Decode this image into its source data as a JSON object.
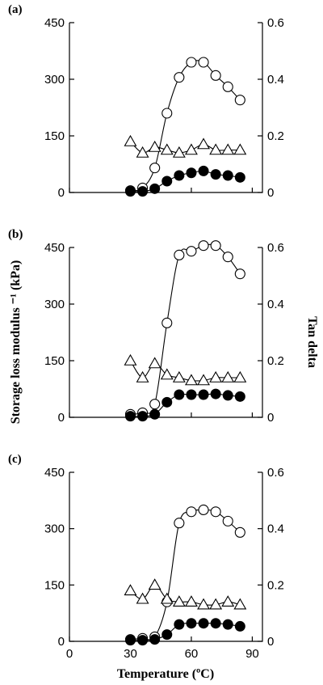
{
  "figure": {
    "ylabel_left": "Storage loss modulus ⁻¹ (kPa)",
    "ylabel_right": "Tan delta",
    "xlabel": "Temperature (ºC)"
  },
  "chart_data": [
    {
      "type": "line",
      "panel": "(a)",
      "x": [
        30,
        36,
        42,
        48,
        54,
        60,
        66,
        72,
        78,
        84,
        90
      ],
      "xlim": [
        0,
        95
      ],
      "xticks": [],
      "ylim_left": [
        0,
        450
      ],
      "yticks_left": [
        "0",
        "150",
        "300",
        "450"
      ],
      "ylim_right": [
        0,
        0.6
      ],
      "yticks_right": [
        "0",
        "0.2",
        "0.4",
        "0.6"
      ],
      "series": [
        {
          "marker": "open-circle",
          "axis": "left",
          "values": [
            5,
            12,
            65,
            210,
            305,
            345,
            345,
            310,
            280,
            245,
            null
          ],
          "line_x": [
            30,
            36,
            42,
            48,
            54,
            60,
            66,
            72,
            78,
            84
          ]
        },
        {
          "marker": "filled-circle",
          "axis": "left",
          "values": [
            3,
            3,
            10,
            30,
            45,
            52,
            57,
            48,
            45,
            40,
            null
          ],
          "line_x": [
            30,
            36,
            42,
            48,
            54,
            60,
            66,
            72,
            78,
            84
          ]
        },
        {
          "marker": "open-triangle",
          "axis": "right",
          "values": [
            0.18,
            0.14,
            0.16,
            0.15,
            0.14,
            0.15,
            0.17,
            0.15,
            0.15,
            0.15,
            null
          ],
          "line_x": [
            30,
            36,
            42,
            48,
            54,
            60,
            66,
            72,
            78,
            84
          ]
        }
      ]
    },
    {
      "type": "line",
      "panel": "(b)",
      "x": [
        30,
        36,
        42,
        48,
        54,
        60,
        66,
        72,
        78,
        84,
        90
      ],
      "xlim": [
        0,
        95
      ],
      "xticks": [],
      "ylim_left": [
        0,
        450
      ],
      "yticks_left": [
        "0",
        "150",
        "300",
        "450"
      ],
      "ylim_right": [
        0,
        0.6
      ],
      "yticks_right": [
        "0",
        "0.2",
        "0.4",
        "0.6"
      ],
      "series": [
        {
          "marker": "open-circle",
          "axis": "left",
          "values": [
            8,
            12,
            35,
            250,
            430,
            440,
            455,
            455,
            425,
            380,
            null
          ],
          "line_x": [
            30,
            36,
            42,
            48,
            54,
            60,
            66,
            72,
            78,
            84
          ]
        },
        {
          "marker": "filled-circle",
          "axis": "left",
          "values": [
            3,
            3,
            8,
            40,
            60,
            60,
            60,
            62,
            58,
            55,
            null
          ],
          "line_x": [
            30,
            36,
            42,
            48,
            54,
            60,
            66,
            72,
            78,
            84
          ]
        },
        {
          "marker": "open-triangle",
          "axis": "right",
          "values": [
            0.2,
            0.14,
            0.19,
            0.15,
            0.14,
            0.13,
            0.13,
            0.14,
            0.14,
            0.14,
            null
          ],
          "line_x": [
            30,
            36,
            42,
            48,
            54,
            60,
            66,
            72,
            78,
            84
          ]
        }
      ]
    },
    {
      "type": "line",
      "panel": "(c)",
      "x": [
        30,
        36,
        42,
        48,
        54,
        60,
        66,
        72,
        78,
        84,
        90
      ],
      "xlim": [
        0,
        95
      ],
      "xticks": [
        "0",
        "30",
        "60",
        "90"
      ],
      "ylim_left": [
        0,
        450
      ],
      "yticks_left": [
        "0",
        "150",
        "300",
        "450"
      ],
      "ylim_right": [
        0,
        0.6
      ],
      "yticks_right": [
        "0",
        "0.2",
        "0.4",
        "0.6"
      ],
      "series": [
        {
          "marker": "open-circle",
          "axis": "left",
          "values": [
            5,
            8,
            12,
            105,
            315,
            345,
            350,
            345,
            320,
            290,
            null
          ],
          "line_x": [
            30,
            36,
            42,
            48,
            54,
            60,
            66,
            72,
            78,
            84
          ]
        },
        {
          "marker": "filled-circle",
          "axis": "left",
          "values": [
            3,
            3,
            5,
            18,
            45,
            48,
            48,
            48,
            45,
            40,
            null
          ],
          "line_x": [
            30,
            36,
            42,
            48,
            54,
            60,
            66,
            72,
            78,
            84
          ]
        },
        {
          "marker": "open-triangle",
          "axis": "right",
          "values": [
            0.18,
            0.15,
            0.2,
            0.15,
            0.14,
            0.14,
            0.13,
            0.13,
            0.14,
            0.13,
            null
          ],
          "line_x": [
            30,
            36,
            42,
            48,
            54,
            60,
            66,
            72,
            78,
            84
          ]
        }
      ]
    }
  ]
}
